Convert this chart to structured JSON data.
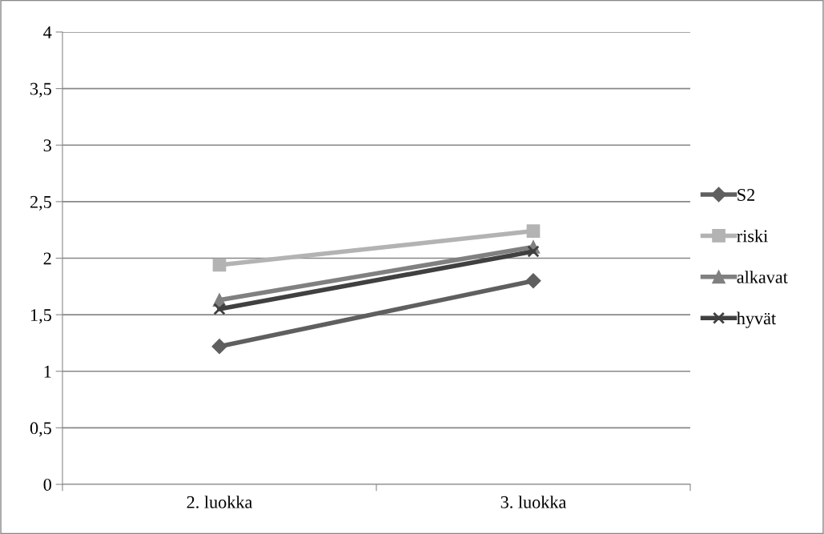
{
  "chart_data": {
    "type": "line",
    "categories": [
      "2. luokka",
      "3. luokka"
    ],
    "series": [
      {
        "name": "S2",
        "color": "#5f5f5f",
        "marker": "diamond",
        "values": [
          1.22,
          1.8
        ]
      },
      {
        "name": "riski",
        "color": "#b3b3b3",
        "marker": "square",
        "values": [
          1.94,
          2.24
        ]
      },
      {
        "name": "alkavat",
        "color": "#808080",
        "marker": "triangle",
        "values": [
          1.63,
          2.1
        ]
      },
      {
        "name": "hyvät",
        "color": "#404040",
        "marker": "cross",
        "values": [
          1.55,
          2.06
        ]
      }
    ],
    "ylim": [
      0,
      4
    ],
    "yticks": [
      0,
      {
        "value": 0.5,
        "label": "0,5"
      },
      1,
      {
        "value": 1.5,
        "label": "1,5"
      },
      2,
      {
        "value": 2.5,
        "label": "2,5"
      },
      3,
      {
        "value": 3.5,
        "label": "3,5"
      },
      4
    ],
    "grid": "y",
    "legend": "right"
  }
}
